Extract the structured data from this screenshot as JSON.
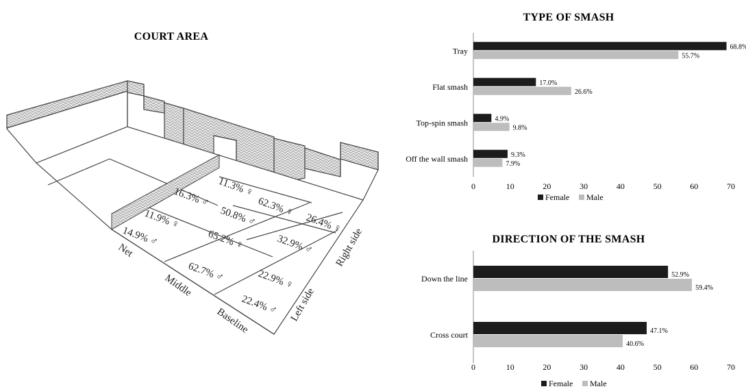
{
  "court": {
    "title": "COURT AREA",
    "zones": [
      {
        "name": "Net",
        "female": "11.9% ♀",
        "male": "14.9% ♂"
      },
      {
        "name": "Net-left",
        "female": "11.3% ♀",
        "male": "16.3% ♂"
      },
      {
        "name": "Middle",
        "female": "65.2% ♀",
        "male": "62.7% ♂"
      },
      {
        "name": "Middle-left",
        "female": "62.3% ♀",
        "male": "50.8% ♂"
      },
      {
        "name": "Baseline-left",
        "female": "22.9% ♀",
        "male": "22.4% ♂"
      },
      {
        "name": "Baseline-right",
        "female": "26.4% ♀",
        "male": "32.9% ♂"
      }
    ],
    "front_labels": [
      "Net",
      "Middle",
      "Baseline"
    ],
    "side_labels": [
      "Left side",
      "Right side"
    ]
  },
  "chart_data": [
    {
      "type": "bar",
      "orientation": "horizontal",
      "title": "TYPE OF SMASH",
      "categories": [
        "Tray",
        "Flat smash",
        "Top-spin smash",
        "Off the wall smash"
      ],
      "series": [
        {
          "name": "Female",
          "color": "#1c1c1c",
          "values": [
            68.8,
            17.0,
            4.9,
            9.3
          ],
          "labels": [
            "68.8%",
            "17.0%",
            "4.9%",
            "9.3%"
          ]
        },
        {
          "name": "Male",
          "color": "#bdbdbd",
          "values": [
            55.7,
            26.6,
            9.8,
            7.9
          ],
          "labels": [
            "55.7%",
            "26.6%",
            "9.8%",
            "7.9%"
          ]
        }
      ],
      "xlim": [
        0,
        70
      ],
      "xticks": [
        0,
        10,
        20,
        30,
        40,
        50,
        60,
        70
      ],
      "grid": false,
      "legend": "bottom"
    },
    {
      "type": "bar",
      "orientation": "horizontal",
      "title": "DIRECTION OF THE SMASH",
      "categories": [
        "Down the line",
        "Cross court"
      ],
      "series": [
        {
          "name": "Female",
          "color": "#1c1c1c",
          "values": [
            52.9,
            47.1
          ],
          "labels": [
            "52.9%",
            "47.1%"
          ]
        },
        {
          "name": "Male",
          "color": "#bdbdbd",
          "values": [
            59.4,
            40.6
          ],
          "labels": [
            "59.4%",
            "40.6%"
          ]
        }
      ],
      "xlim": [
        0,
        70
      ],
      "xticks": [
        0,
        10,
        20,
        30,
        40,
        50,
        60,
        70
      ],
      "grid": false,
      "legend": "bottom"
    }
  ]
}
